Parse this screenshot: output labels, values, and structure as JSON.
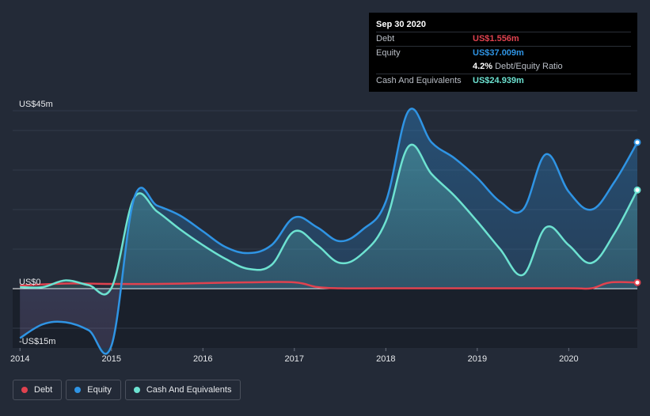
{
  "tooltip": {
    "date": "Sep 30 2020",
    "debt_label": "Debt",
    "debt_value": "US$1.556m",
    "equity_label": "Equity",
    "equity_value": "US$37.009m",
    "ratio_value": "4.2%",
    "ratio_label": "Debt/Equity Ratio",
    "cash_label": "Cash And Equivalents",
    "cash_value": "US$24.939m"
  },
  "legend": {
    "debt": "Debt",
    "equity": "Equity",
    "cash": "Cash And Equivalents"
  },
  "colors": {
    "background": "#232a37",
    "debt": "#e0424f",
    "equity": "#2f94e4",
    "cash": "#6de2d1",
    "tooltip_bg": "#000000"
  },
  "chart_data": {
    "type": "line",
    "y_axis_labels": [
      "US$45m",
      "US$0",
      "-US$15m"
    ],
    "x_axis_labels": [
      "2014",
      "2015",
      "2016",
      "2017",
      "2018",
      "2019",
      "2020"
    ],
    "x_ticks": [
      2014,
      2015,
      2016,
      2017,
      2018,
      2019,
      2020
    ],
    "ylim": [
      -15,
      45
    ],
    "xlim": [
      2013.92,
      2020.75
    ],
    "y_label_values": [
      45,
      0,
      -15
    ],
    "grid": true,
    "legend_placement": "bottom-left",
    "series": [
      {
        "name": "Debt",
        "key": "debt",
        "points": [
          [
            2014.0,
            0.8
          ],
          [
            2014.5,
            1.3
          ],
          [
            2015.0,
            1.2
          ],
          [
            2015.5,
            1.2
          ],
          [
            2016.0,
            1.4
          ],
          [
            2016.5,
            1.6
          ],
          [
            2017.0,
            1.6
          ],
          [
            2017.25,
            0.4
          ],
          [
            2017.5,
            0.1
          ],
          [
            2018.0,
            0.1
          ],
          [
            2019.0,
            0.1
          ],
          [
            2020.0,
            0.1
          ],
          [
            2020.25,
            0.1
          ],
          [
            2020.45,
            1.556
          ],
          [
            2020.75,
            1.556
          ]
        ]
      },
      {
        "name": "Equity",
        "key": "equity",
        "points": [
          [
            2014.0,
            -12.5
          ],
          [
            2014.25,
            -9.0
          ],
          [
            2014.5,
            -8.5
          ],
          [
            2014.75,
            -10.5
          ],
          [
            2015.0,
            -14.4
          ],
          [
            2015.25,
            23.0
          ],
          [
            2015.5,
            21.0
          ],
          [
            2015.75,
            18.5
          ],
          [
            2016.0,
            14.5
          ],
          [
            2016.25,
            10.5
          ],
          [
            2016.5,
            9.0
          ],
          [
            2016.75,
            11.0
          ],
          [
            2017.0,
            18.0
          ],
          [
            2017.25,
            15.5
          ],
          [
            2017.5,
            12.0
          ],
          [
            2017.75,
            15.0
          ],
          [
            2018.0,
            22.0
          ],
          [
            2018.25,
            45.0
          ],
          [
            2018.5,
            37.0
          ],
          [
            2018.75,
            33.0
          ],
          [
            2019.0,
            28.0
          ],
          [
            2019.25,
            22.0
          ],
          [
            2019.5,
            20.0
          ],
          [
            2019.75,
            34.0
          ],
          [
            2020.0,
            24.5
          ],
          [
            2020.25,
            20.0
          ],
          [
            2020.5,
            27.0
          ],
          [
            2020.75,
            37.009
          ]
        ]
      },
      {
        "name": "Cash And Equivalents",
        "key": "cash",
        "points": [
          [
            2014.0,
            0.4
          ],
          [
            2014.25,
            0.4
          ],
          [
            2014.5,
            2.1
          ],
          [
            2014.75,
            0.9
          ],
          [
            2015.0,
            0.2
          ],
          [
            2015.25,
            23.0
          ],
          [
            2015.5,
            19.5
          ],
          [
            2015.75,
            15.0
          ],
          [
            2016.0,
            11.0
          ],
          [
            2016.25,
            7.5
          ],
          [
            2016.5,
            5.0
          ],
          [
            2016.75,
            6.0
          ],
          [
            2017.0,
            14.5
          ],
          [
            2017.25,
            11.0
          ],
          [
            2017.5,
            6.5
          ],
          [
            2017.75,
            9.0
          ],
          [
            2018.0,
            17.0
          ],
          [
            2018.25,
            36.0
          ],
          [
            2018.5,
            29.0
          ],
          [
            2018.75,
            23.5
          ],
          [
            2019.0,
            17.0
          ],
          [
            2019.25,
            10.0
          ],
          [
            2019.5,
            3.5
          ],
          [
            2019.75,
            15.5
          ],
          [
            2020.0,
            11.0
          ],
          [
            2020.25,
            6.5
          ],
          [
            2020.5,
            14.0
          ],
          [
            2020.75,
            24.939
          ]
        ]
      }
    ]
  }
}
